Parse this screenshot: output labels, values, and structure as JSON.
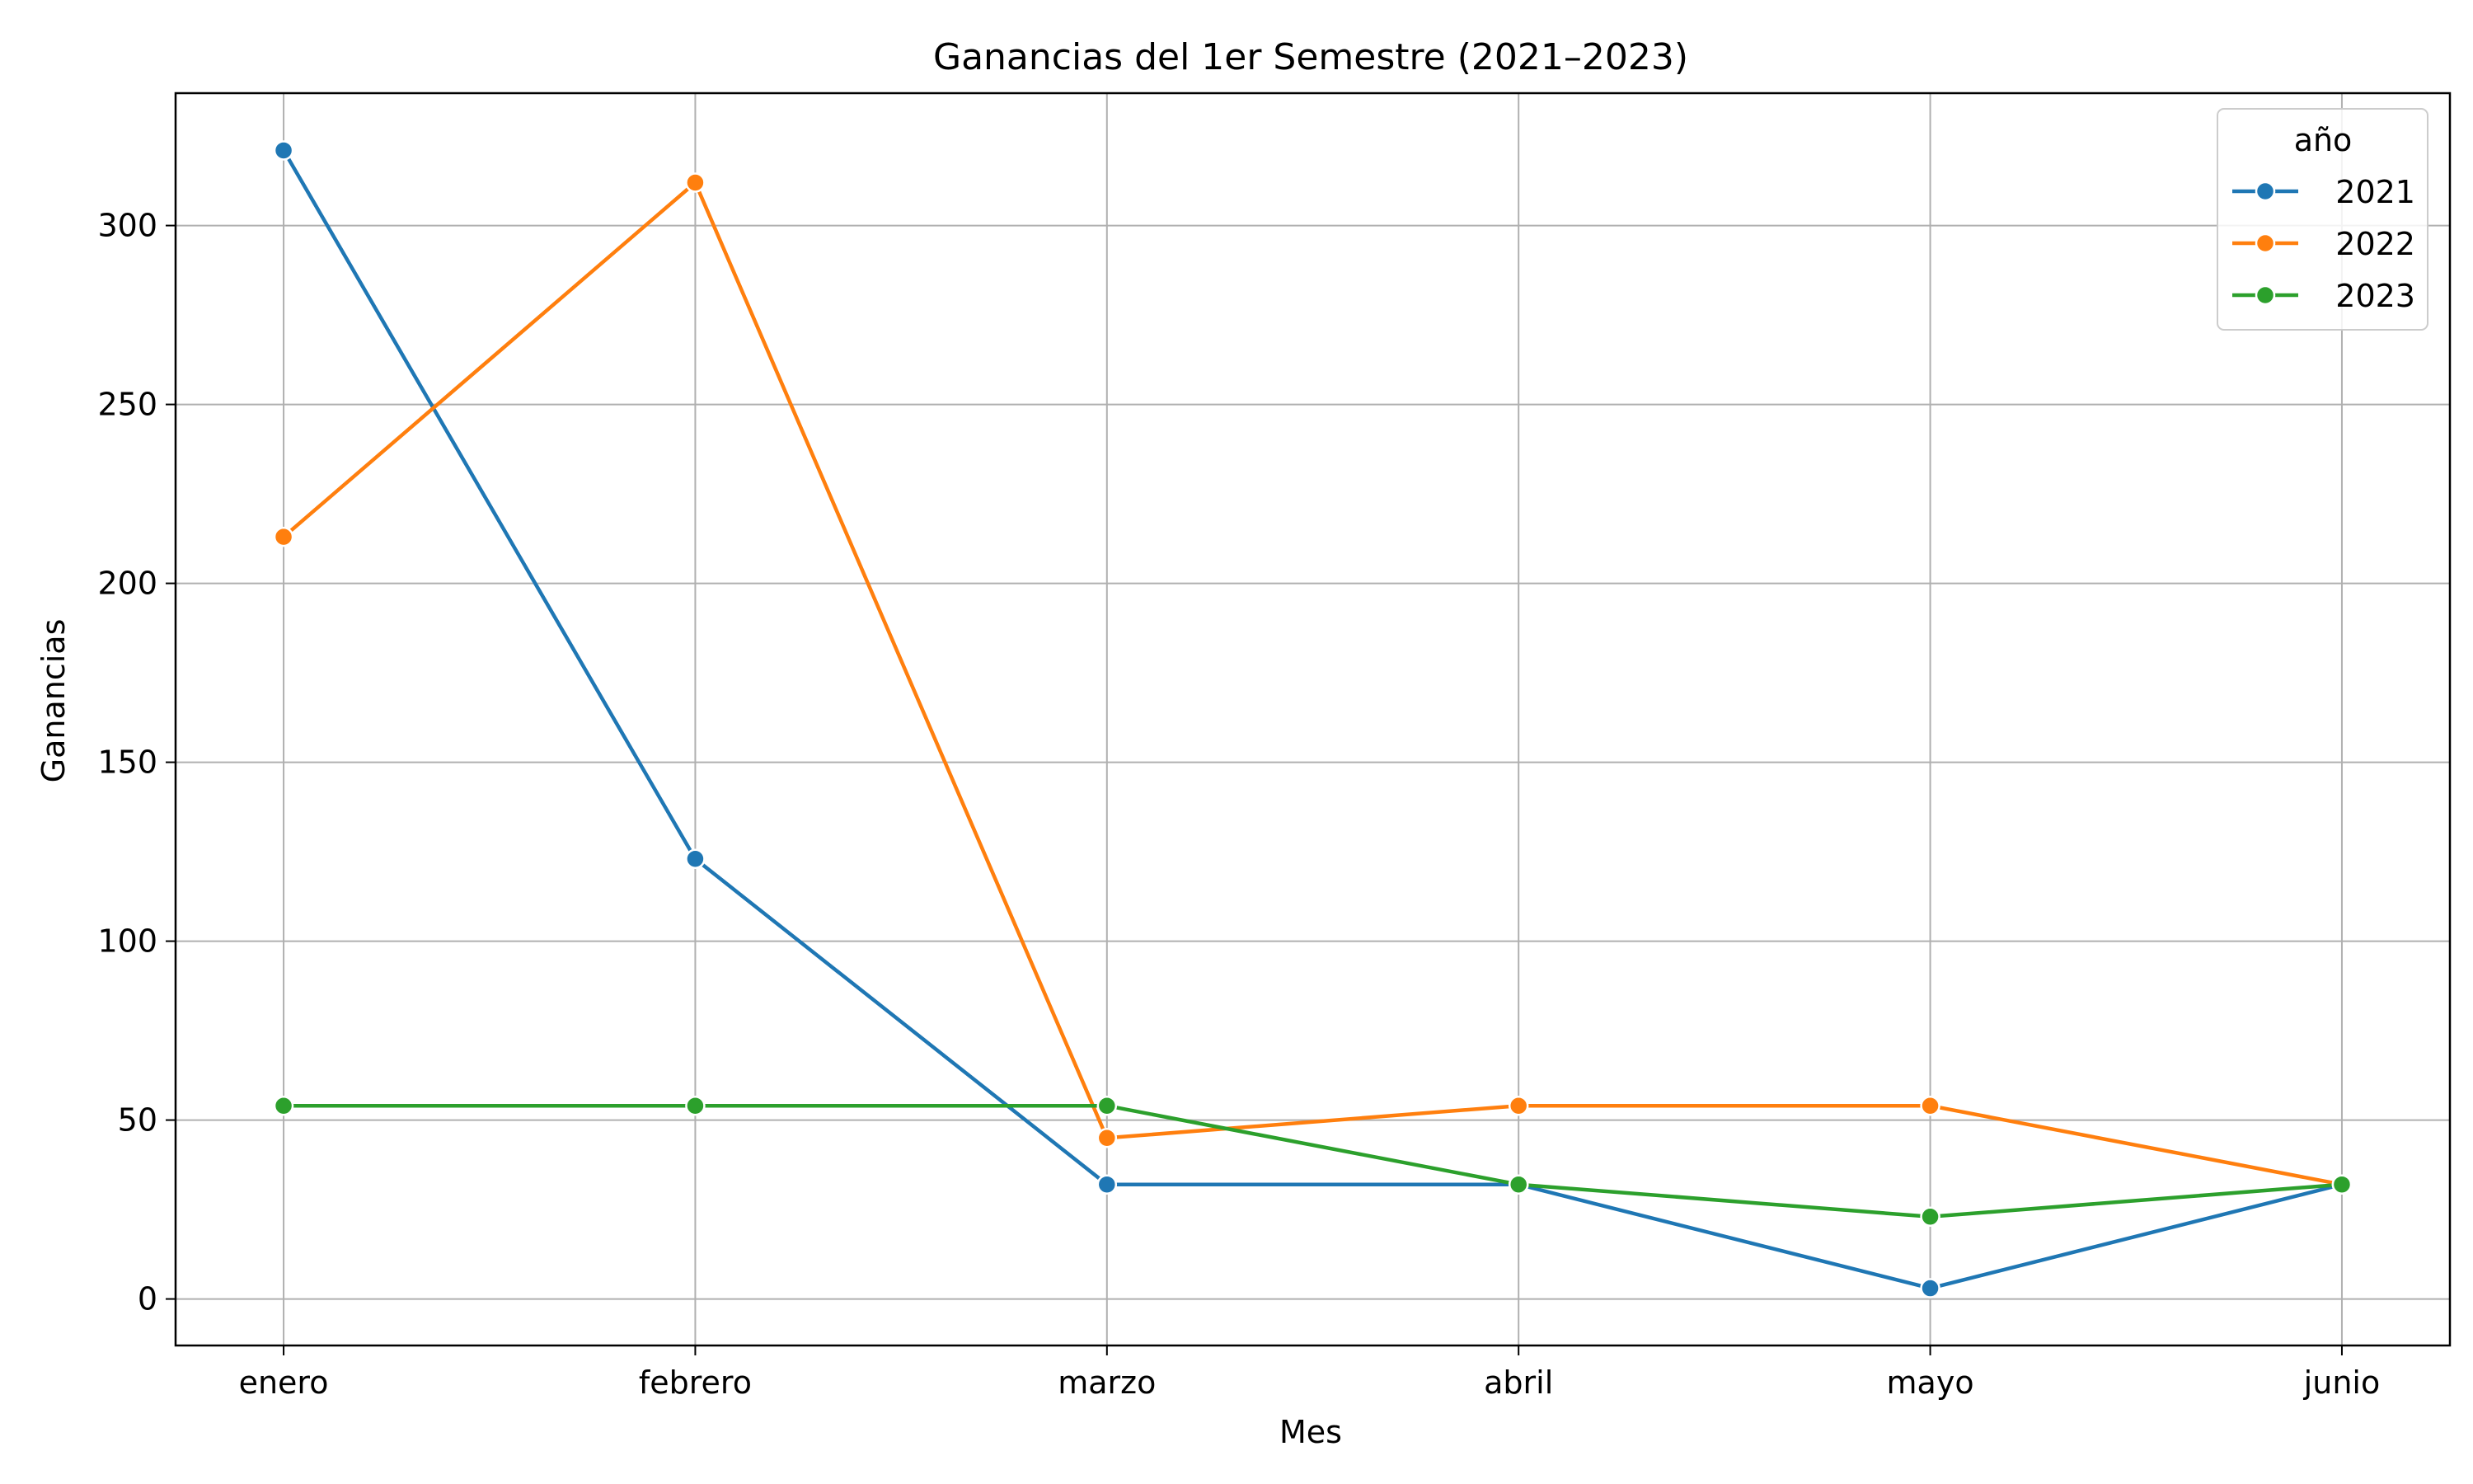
{
  "chart_data": {
    "type": "line",
    "title": "Ganancias del 1er Semestre (2021–2023)",
    "xlabel": "Mes",
    "ylabel": "Ganancias",
    "categories": [
      "enero",
      "febrero",
      "marzo",
      "abril",
      "mayo",
      "junio"
    ],
    "ylim": [
      -13,
      337
    ],
    "yticks": [
      0,
      50,
      100,
      150,
      200,
      250,
      300
    ],
    "grid": true,
    "legend": {
      "title": "año",
      "placement": "top-right"
    },
    "series": [
      {
        "name": "2021",
        "color": "#1f77b4",
        "values": [
          321,
          123,
          32,
          32,
          3,
          32
        ]
      },
      {
        "name": "2022",
        "color": "#ff7f0e",
        "values": [
          213,
          312,
          45,
          54,
          54,
          32
        ]
      },
      {
        "name": "2023",
        "color": "#2ca02c",
        "values": [
          54,
          54,
          54,
          32,
          23,
          32
        ]
      }
    ]
  }
}
